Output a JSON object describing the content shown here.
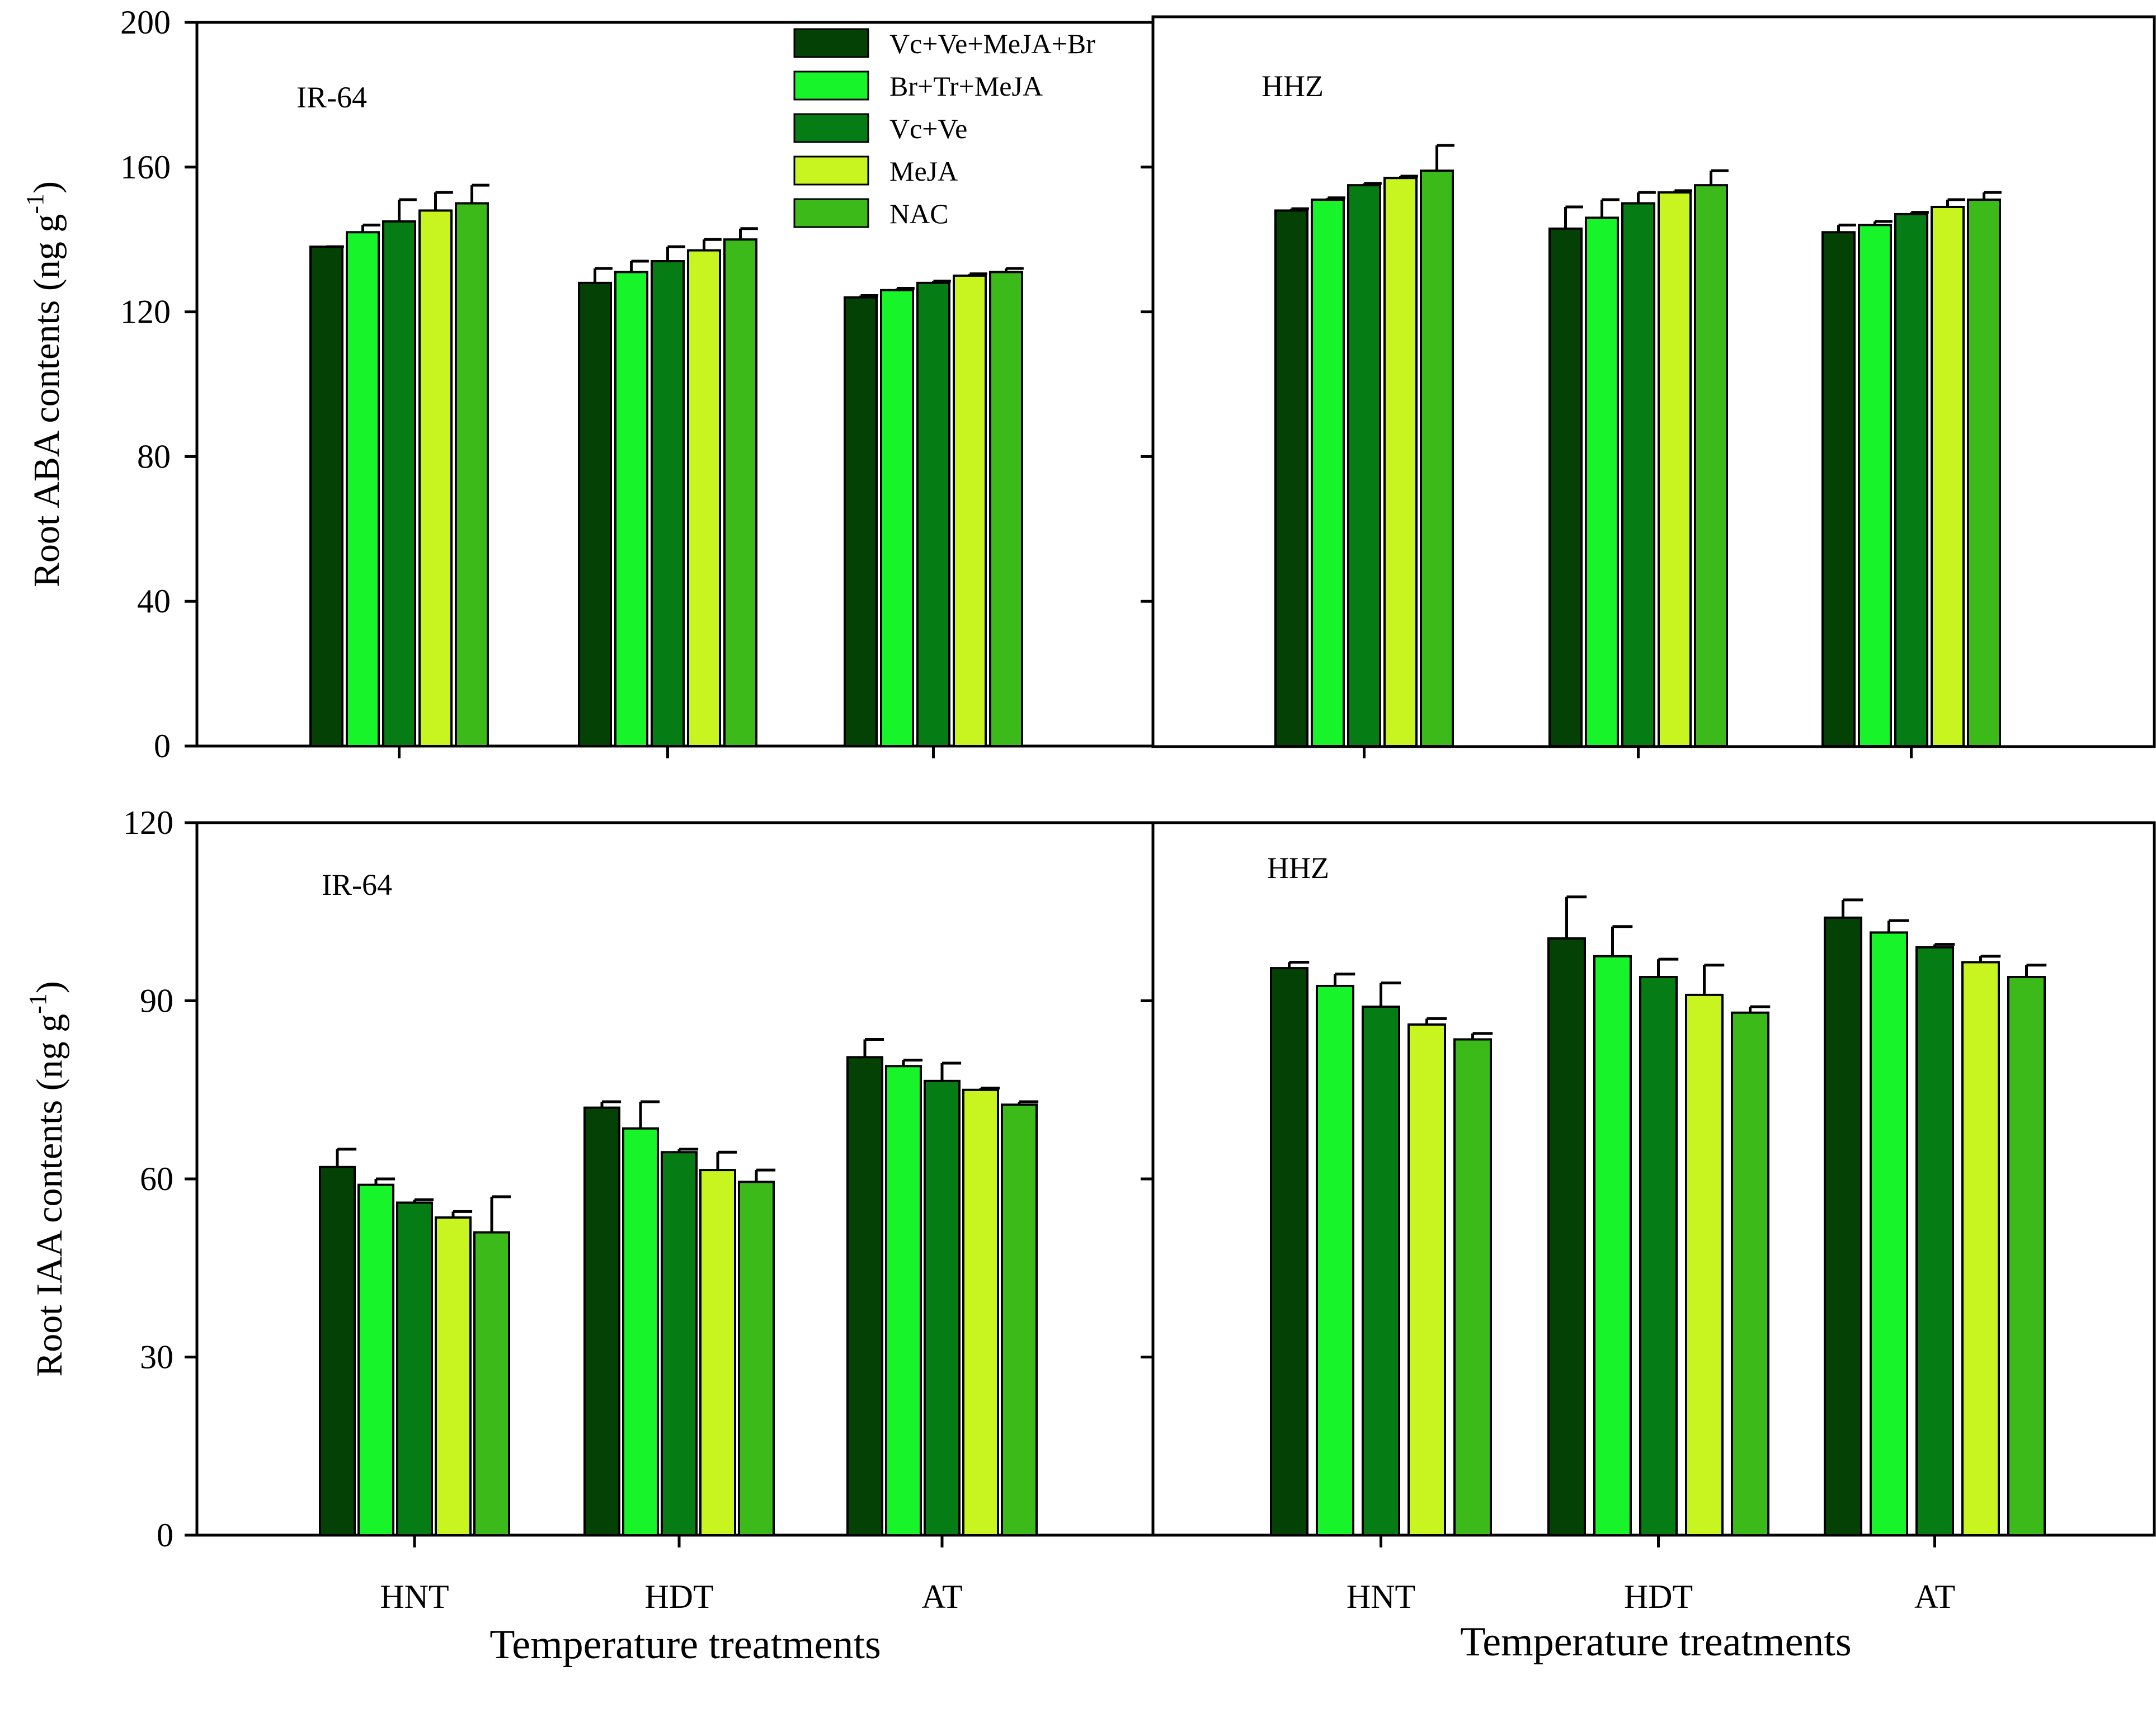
{
  "legend": [
    "Vc+Ve+MeJA+Br",
    "Br+Tr+MeJA",
    "Vc+Ve",
    "MeJA",
    "NAC"
  ],
  "colors": {
    "series": [
      "#034204",
      "#18f42a",
      "#067d14",
      "#c8f51f",
      "#3cba1a"
    ],
    "axis": "#000000",
    "background": "#ffffff"
  },
  "x_axis_title": "Temperature treatments",
  "chart_data": [
    {
      "id": "aba-ir64",
      "type": "bar",
      "panel_label": "IR-64",
      "ylabel": "Root ABA contents (ng g",
      "ylabel_sup": "-1",
      "ylabel_close": ")",
      "ylim": [
        0,
        200
      ],
      "yticks": [
        "0",
        "40",
        "80",
        "120",
        "160",
        "200"
      ],
      "categories": [
        "HNT",
        "HDT",
        "AT"
      ],
      "show_xlabels": false,
      "series": [
        {
          "name": "Vc+Ve+MeJA+Br",
          "values": [
            138,
            128,
            124
          ],
          "errors": [
            0,
            4,
            0.5
          ]
        },
        {
          "name": "Br+Tr+MeJA",
          "values": [
            142,
            131,
            126
          ],
          "errors": [
            2,
            3,
            0.5
          ]
        },
        {
          "name": "Vc+Ve",
          "values": [
            145,
            134,
            128
          ],
          "errors": [
            6,
            4,
            0.5
          ]
        },
        {
          "name": "MeJA",
          "values": [
            148,
            137,
            130
          ],
          "errors": [
            5,
            3,
            0.5
          ]
        },
        {
          "name": "NAC",
          "values": [
            150,
            140,
            131
          ],
          "errors": [
            5,
            3,
            1
          ]
        }
      ]
    },
    {
      "id": "aba-hhz",
      "type": "bar",
      "panel_label": "HHZ",
      "ylim": [
        0,
        200
      ],
      "categories": [
        "HNT",
        "HDT",
        "AT"
      ],
      "show_xlabels": false,
      "series": [
        {
          "name": "Vc+Ve+MeJA+Br",
          "values": [
            148,
            143,
            142
          ],
          "errors": [
            0.5,
            6,
            2
          ]
        },
        {
          "name": "Br+Tr+MeJA",
          "values": [
            151,
            146,
            144
          ],
          "errors": [
            0.5,
            5,
            1
          ]
        },
        {
          "name": "Vc+Ve",
          "values": [
            155,
            150,
            147
          ],
          "errors": [
            0.5,
            3,
            0.5
          ]
        },
        {
          "name": "MeJA",
          "values": [
            157,
            153,
            149
          ],
          "errors": [
            0.5,
            0.5,
            2
          ]
        },
        {
          "name": "NAC",
          "values": [
            159,
            155,
            151
          ],
          "errors": [
            7,
            4,
            2
          ]
        }
      ]
    },
    {
      "id": "iaa-ir64",
      "type": "bar",
      "panel_label": "IR-64",
      "ylabel": "Root IAA contents (ng g",
      "ylabel_sup": "-1",
      "ylabel_close": ")",
      "ylim": [
        0,
        120
      ],
      "yticks": [
        "0",
        "30",
        "60",
        "90",
        "120"
      ],
      "categories": [
        "HNT",
        "HDT",
        "AT"
      ],
      "show_xlabels": true,
      "series": [
        {
          "name": "Vc+Ve+MeJA+Br",
          "values": [
            62,
            72,
            80.5
          ],
          "errors": [
            3,
            1,
            3
          ]
        },
        {
          "name": "Br+Tr+MeJA",
          "values": [
            59,
            68.5,
            79
          ],
          "errors": [
            1,
            4.5,
            1
          ]
        },
        {
          "name": "Vc+Ve",
          "values": [
            56,
            64.5,
            76.5
          ],
          "errors": [
            0.5,
            0.5,
            3
          ]
        },
        {
          "name": "MeJA",
          "values": [
            53.5,
            61.5,
            75
          ],
          "errors": [
            1,
            3,
            0.3
          ]
        },
        {
          "name": "NAC",
          "values": [
            51,
            59.5,
            72.5
          ],
          "errors": [
            6,
            2,
            0.5
          ]
        }
      ]
    },
    {
      "id": "iaa-hhz",
      "type": "bar",
      "panel_label": "HHZ",
      "ylim": [
        0,
        120
      ],
      "categories": [
        "HNT",
        "HDT",
        "AT"
      ],
      "show_xlabels": true,
      "series": [
        {
          "name": "Vc+Ve+MeJA+Br",
          "values": [
            95.5,
            100.5,
            104
          ],
          "errors": [
            1,
            7,
            3
          ]
        },
        {
          "name": "Br+Tr+MeJA",
          "values": [
            92.5,
            97.5,
            101.5
          ],
          "errors": [
            2,
            5,
            2
          ]
        },
        {
          "name": "Vc+Ve",
          "values": [
            89,
            94,
            99
          ],
          "errors": [
            4,
            3,
            0.5
          ]
        },
        {
          "name": "MeJA",
          "values": [
            86,
            91,
            96.5
          ],
          "errors": [
            1,
            5,
            1
          ]
        },
        {
          "name": "NAC",
          "values": [
            83.5,
            88,
            94
          ],
          "errors": [
            1,
            1,
            2
          ]
        }
      ]
    }
  ]
}
